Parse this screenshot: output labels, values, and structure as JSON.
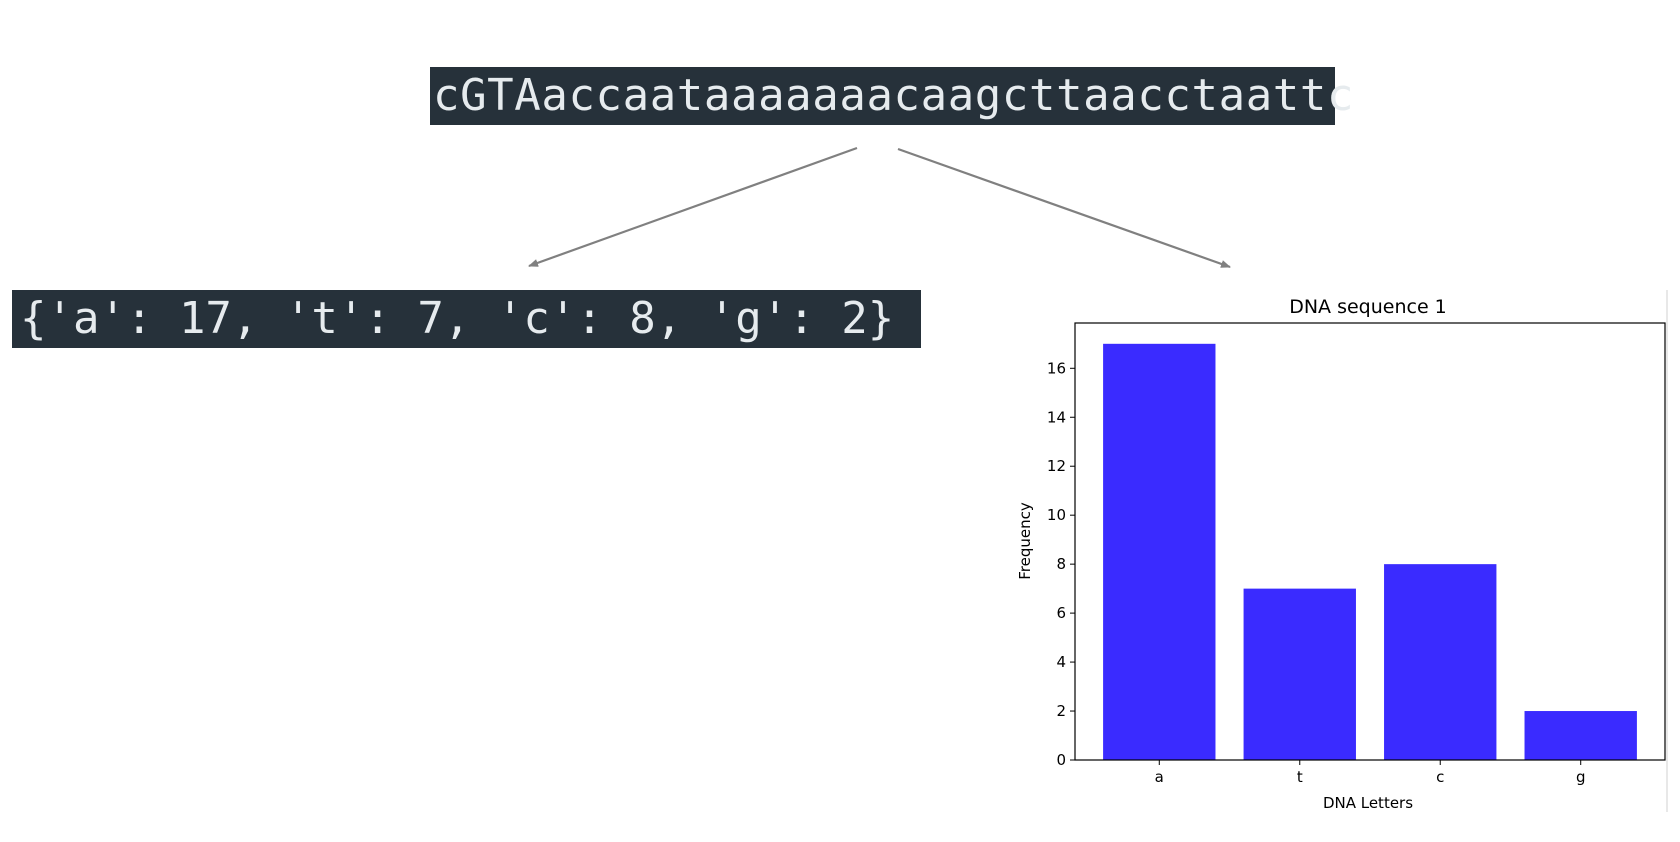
{
  "sequence": "cGTAaccaataaaaaaacaagcttaacctaattc",
  "counts_text": "{'a': 17, 't': 7, 'c': 8, 'g': 2}",
  "colors": {
    "code_bg": "#26313a",
    "code_fg": "#e6ebee",
    "bar": "#3a2bff",
    "arrow": "#808080"
  },
  "chart_data": {
    "type": "bar",
    "title": "DNA sequence 1",
    "xlabel": "DNA Letters",
    "ylabel": "Frequency",
    "categories": [
      "a",
      "t",
      "c",
      "g"
    ],
    "values": [
      17,
      7,
      8,
      2
    ],
    "ylim": [
      0,
      17.85
    ],
    "yticks": [
      0,
      2,
      4,
      6,
      8,
      10,
      12,
      14,
      16
    ],
    "grid": false,
    "legend": false
  }
}
